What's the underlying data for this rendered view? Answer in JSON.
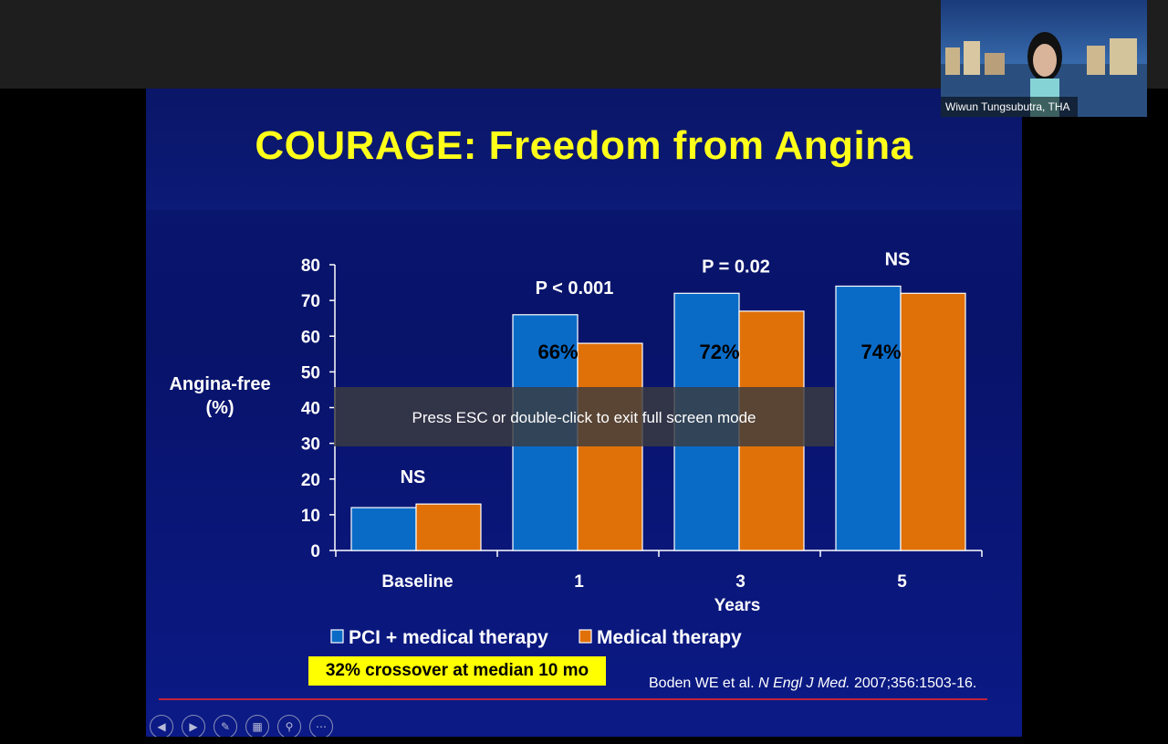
{
  "slide": {
    "title": "COURAGE: Freedom from Angina",
    "crossover_note": "32% crossover at median 10 mo",
    "citation_authors": "Boden WE et al. ",
    "citation_journal": "N Engl J Med.",
    "citation_details": " 2007;356:1503-16."
  },
  "chart_data": {
    "type": "bar",
    "categories": [
      "Baseline",
      "1",
      "3",
      "5"
    ],
    "xlabel": "Years",
    "ylabel": "Angina-free (%)",
    "ylabel_lines": [
      "Angina-free",
      "(%)"
    ],
    "ylim": [
      0,
      80
    ],
    "yticks": [
      "0",
      "10",
      "20",
      "30",
      "40",
      "50",
      "60",
      "70",
      "80"
    ],
    "series": [
      {
        "name": "PCI + medical therapy",
        "color": "#0a6bc7",
        "values": [
          12,
          66,
          72,
          74
        ]
      },
      {
        "name": "Medical therapy",
        "color": "#e07008",
        "values": [
          13,
          58,
          67,
          72
        ]
      }
    ],
    "significance": [
      "NS",
      "P < 0.001",
      "P = 0.02",
      "NS"
    ],
    "bar_labels": [
      "",
      "66%",
      "72%",
      "74%"
    ],
    "legend": "bottom"
  },
  "player": {
    "controls": [
      "previous-icon",
      "next-icon",
      "pen-icon",
      "slides-icon",
      "zoom-icon",
      "more-icon"
    ],
    "fullscreen_notice": "Press ESC or double-click to exit full screen mode"
  },
  "video": {
    "participant_name": "Wiwun Tungsubutra, THA"
  }
}
